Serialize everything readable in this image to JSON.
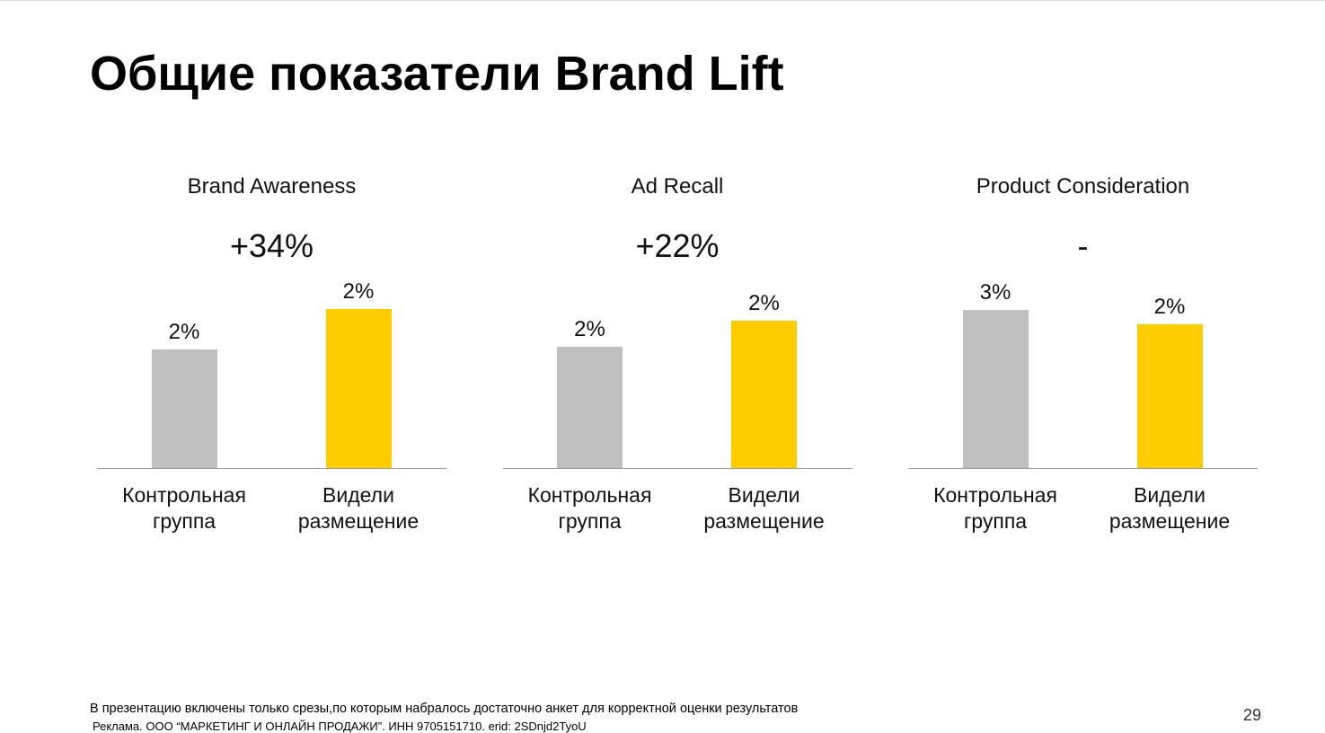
{
  "title": "Общие показатели Brand Lift",
  "chart_data": [
    {
      "type": "bar",
      "title": "Brand Awareness",
      "lift": "+34%",
      "categories": [
        "Контрольная группа",
        "Видели размещение"
      ],
      "values": [
        1.8,
        2.41
      ],
      "value_labels": [
        "2%",
        "2%"
      ],
      "colors": [
        "#bfbfbf",
        "#ffcc00"
      ],
      "ylim": [
        0,
        3
      ]
    },
    {
      "type": "bar",
      "title": "Ad Recall",
      "lift": "+22%",
      "categories": [
        "Контрольная группа",
        "Видели размещение"
      ],
      "values": [
        1.84,
        2.24
      ],
      "value_labels": [
        "2%",
        "2%"
      ],
      "colors": [
        "#bfbfbf",
        "#ffcc00"
      ],
      "ylim": [
        0,
        3
      ]
    },
    {
      "type": "bar",
      "title": "Product Consideration",
      "lift": "-",
      "categories": [
        "Контрольная группа",
        "Видели размещение"
      ],
      "values": [
        2.6,
        2.36
      ],
      "value_labels": [
        "3%",
        "2%"
      ],
      "colors": [
        "#bfbfbf",
        "#ffcc00"
      ],
      "ylim": [
        0,
        3.25
      ]
    }
  ],
  "footnote": "В презентацию включены только срезы,по которым набралось достаточно анкет для корректной оценки результатов",
  "disclaimer": "Реклама. ООО “МАРКЕТИНГ И ОНЛАЙН ПРОДАЖИ”. ИНН 9705151710. erid: 2SDnjd2TyoU",
  "page_number": "29"
}
